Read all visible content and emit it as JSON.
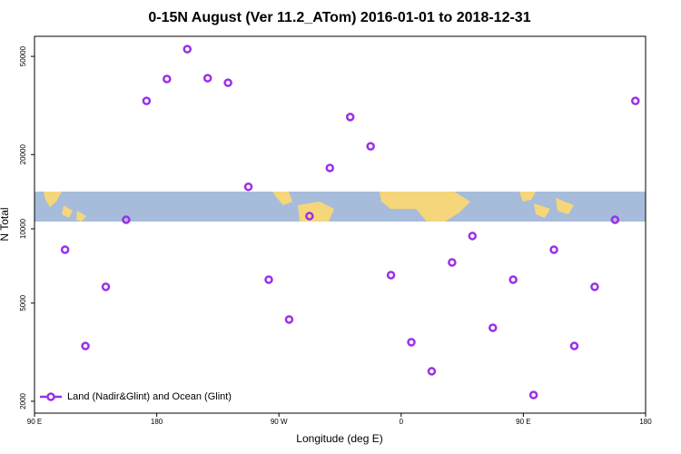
{
  "chart_data": {
    "type": "scatter",
    "title": "0-15N August (Ver 11.2_ATom)   2016-01-01 to 2018-12-31",
    "xlabel": "Longitude (deg E)",
    "ylabel": "N Total",
    "log_y": true,
    "legend": "bottom-left",
    "xlim": [
      90,
      540
    ],
    "ylim": [
      1790,
      60300
    ],
    "xticks": [
      {
        "value": 90,
        "label": "90 E"
      },
      180,
      {
        "value": 270,
        "label": "90 W"
      },
      {
        "value": 360,
        "label": "0"
      },
      {
        "value": 450,
        "label": "90 E"
      },
      {
        "value": 540,
        "label": "180"
      }
    ],
    "yticks": [
      2000,
      5000,
      10000,
      20000,
      50000
    ],
    "x": [
      112.5,
      127.5,
      142.5,
      157.5,
      172.5,
      187.5,
      202.5,
      217.5,
      232.5,
      247.5,
      262.5,
      277.5,
      292.5,
      307.5,
      322.5,
      337.5,
      352.5,
      367.5,
      382.5,
      397.5,
      412.5,
      427.5,
      442.5,
      457.5,
      472.5,
      487.5,
      502.5,
      517.5,
      532.5
    ],
    "series": [
      {
        "name": "Land (Nadir&Glint) and Ocean (Glint)",
        "color": "#9b30e8",
        "values": [
          8230,
          3350,
          5820,
          10880,
          33000,
          40500,
          53500,
          40800,
          39100,
          14800,
          6220,
          4290,
          11260,
          17650,
          28400,
          21600,
          6490,
          3470,
          2645,
          7310,
          9350,
          3970,
          6220,
          2120,
          8230,
          3350,
          5820,
          10880,
          33000
        ]
      }
    ]
  }
}
